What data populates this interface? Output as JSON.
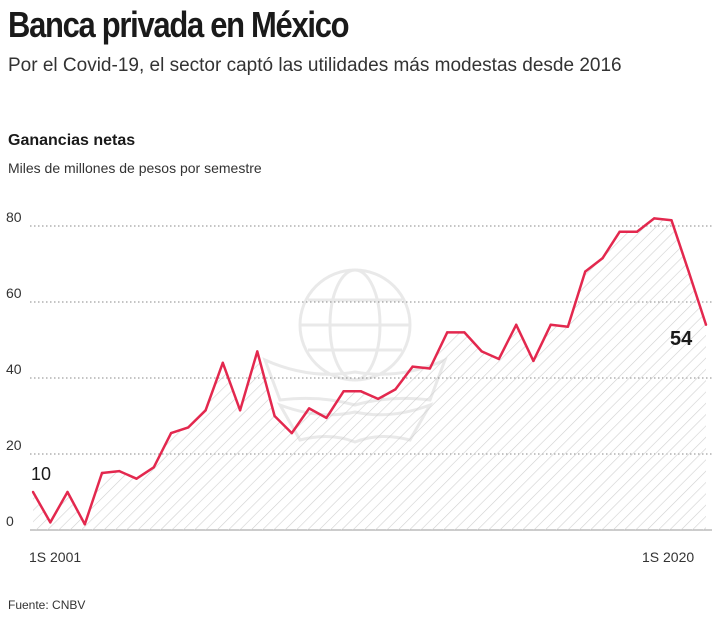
{
  "header": {
    "title": "Banca privada en México",
    "subtitle": "Por el Covid-19, el sector captó las utilidades más modestas desde 2016",
    "section_title": "Ganancias netas",
    "units": "Miles de millones de pesos por semestre"
  },
  "footer": {
    "source": "Fuente: CNBV"
  },
  "colors": {
    "line": "#e3284e",
    "grid": "#888888",
    "hatch": "#d4d4d4",
    "text": "#222222"
  },
  "chart_data": {
    "type": "area",
    "title": "Ganancias netas",
    "ylabel": "Miles de millones de pesos por semestre",
    "xlabel": "",
    "ylim": [
      0,
      80
    ],
    "yticks": [
      0,
      20,
      40,
      60,
      80
    ],
    "x_tick_labels": [
      {
        "index": 0,
        "label": "1S 2001"
      },
      {
        "index": 39,
        "label": "1S 2020"
      }
    ],
    "series": [
      {
        "name": "Ganancias netas",
        "values": [
          10,
          2,
          10,
          1.5,
          15,
          15.5,
          13.5,
          16.5,
          25.5,
          27,
          31.5,
          44,
          31.5,
          47,
          30,
          25.5,
          32,
          29.5,
          36.5,
          36.5,
          34.5,
          37,
          43,
          42.5,
          52,
          52,
          47,
          45,
          54,
          44.5,
          54,
          53.5,
          68,
          71.5,
          78.5,
          78.5,
          82,
          81.5,
          68,
          54
        ]
      }
    ],
    "annotations": [
      {
        "index": 0,
        "text": "10"
      },
      {
        "index": 39,
        "text": "54"
      }
    ]
  }
}
